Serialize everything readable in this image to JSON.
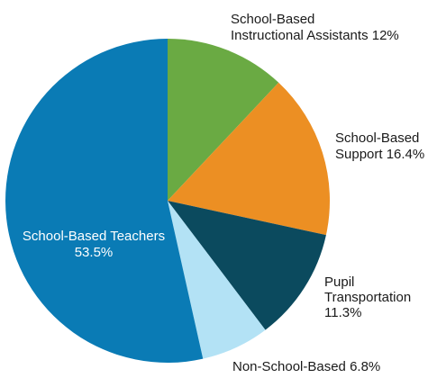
{
  "chart_data": {
    "type": "pie",
    "slices": [
      {
        "label_lines": [
          "School-Based",
          "Instructional Assistants 12%"
        ],
        "value": 12.0,
        "color": "#6aaa43"
      },
      {
        "label_lines": [
          "School-Based",
          "Support 16.4%"
        ],
        "value": 16.4,
        "color": "#ec8f23"
      },
      {
        "label_lines": [
          "Pupil",
          "Transportation",
          "11.3%"
        ],
        "value": 11.3,
        "color": "#0b4a5e"
      },
      {
        "label_lines": [
          "Non-School-Based 6.8%"
        ],
        "value": 6.8,
        "color": "#b3e2f5"
      },
      {
        "label_lines": [
          "School-Based Teachers",
          "53.5%"
        ],
        "value": 53.5,
        "color": "#0a7bb5"
      }
    ]
  }
}
